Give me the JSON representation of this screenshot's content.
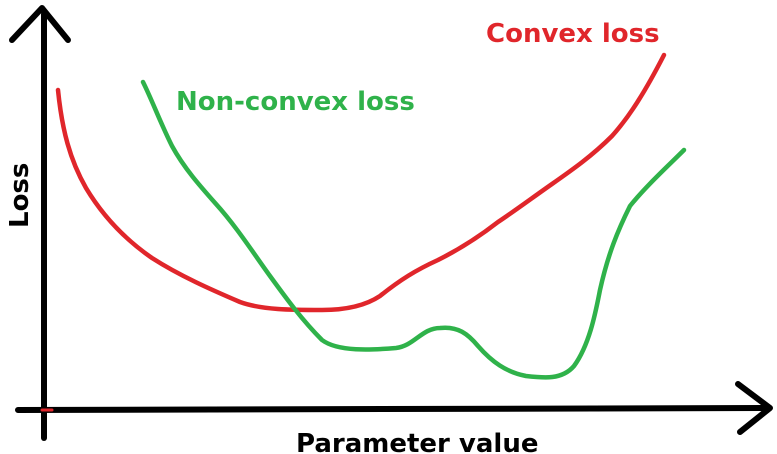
{
  "labels": {
    "convex": "Convex loss",
    "nonconvex": "Non-convex loss",
    "xaxis": "Parameter value",
    "yaxis": "Loss"
  },
  "colors": {
    "convex": "#e0262b",
    "nonconvex": "#2fb24a",
    "axis": "#000000",
    "background": "#ffffff"
  }
}
